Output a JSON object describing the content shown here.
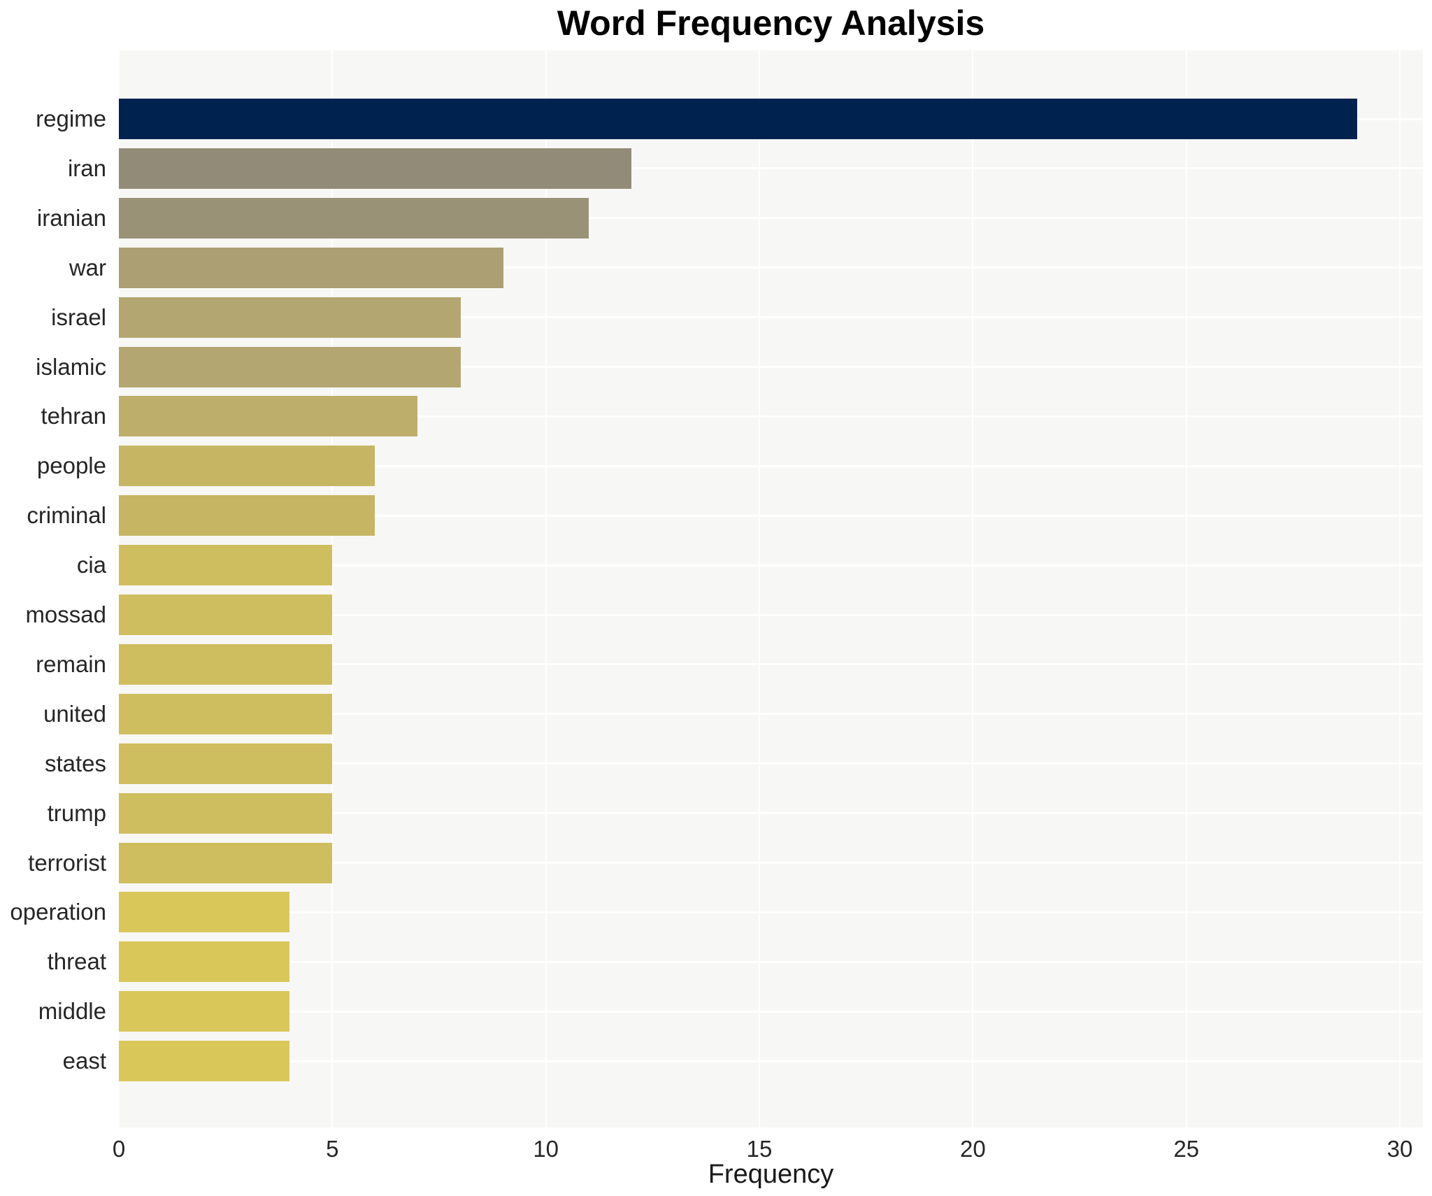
{
  "chart_data": {
    "type": "bar",
    "orientation": "horizontal",
    "title": "Word Frequency Analysis",
    "xlabel": "Frequency",
    "ylabel": "",
    "xlim": [
      0,
      30.54
    ],
    "xticks": [
      0,
      5,
      10,
      15,
      20,
      25,
      30
    ],
    "grid": true,
    "legend_position": "none",
    "categories": [
      "regime",
      "iran",
      "iranian",
      "war",
      "israel",
      "islamic",
      "tehran",
      "people",
      "criminal",
      "cia",
      "mossad",
      "remain",
      "united",
      "states",
      "trump",
      "terrorist",
      "operation",
      "threat",
      "middle",
      "east"
    ],
    "values": [
      29,
      12,
      11,
      9,
      8,
      8,
      7,
      6,
      6,
      5,
      5,
      5,
      5,
      5,
      5,
      5,
      4,
      4,
      4,
      4
    ],
    "bar_colors": [
      "#00224e",
      "#928b78",
      "#9a9277",
      "#ab9f73",
      "#b3a671",
      "#b3a671",
      "#bdae6b",
      "#c6b663",
      "#c6b663",
      "#cfbe5f",
      "#cfbe5f",
      "#cfbe5f",
      "#cfbe5f",
      "#cfbe5f",
      "#cfbe5f",
      "#cfbe5f",
      "#dac75a",
      "#dac75a",
      "#dac75a",
      "#dac75a"
    ],
    "colors": {
      "plot_background": "#f7f7f5",
      "gridline": "#ffffff",
      "tick_text": "#262626",
      "title_text": "#000000"
    }
  }
}
